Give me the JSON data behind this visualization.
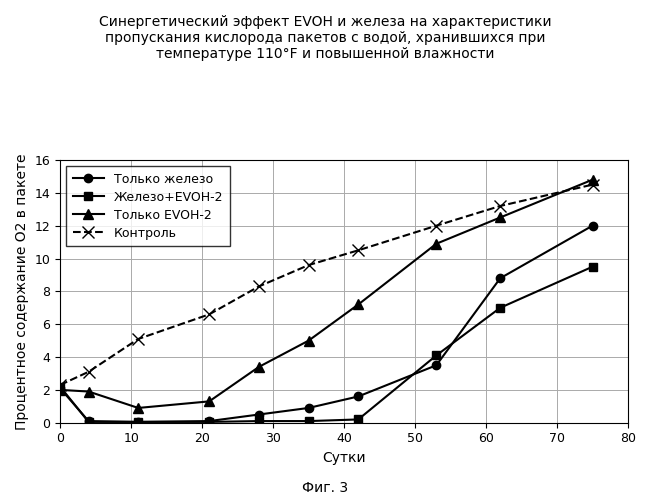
{
  "title_line1": "Синергетический эффект EVOH и железа на характеристики",
  "title_line2": "пропускания кислорода пакетов с водой, хранившихся при",
  "title_line3": "температуре 110°F и повышенной влажности",
  "xlabel": "Сутки",
  "ylabel": "Процентное содержание O2 в пакете",
  "fig_label": "Фиг. 3",
  "xlim": [
    0,
    80
  ],
  "ylim": [
    0,
    16
  ],
  "xticks": [
    0,
    10,
    20,
    30,
    40,
    50,
    60,
    70,
    80
  ],
  "yticks": [
    0,
    2,
    4,
    6,
    8,
    10,
    12,
    14,
    16
  ],
  "series": [
    {
      "label": "Только железо",
      "x": [
        0,
        4,
        11,
        21,
        28,
        35,
        42,
        53,
        62,
        75
      ],
      "y": [
        2.1,
        0.1,
        0.05,
        0.1,
        0.5,
        0.9,
        1.6,
        3.5,
        8.8,
        12.0
      ],
      "marker": "o",
      "linestyle": "-",
      "color": "#000000",
      "linewidth": 1.5,
      "markersize": 6
    },
    {
      "label": "Железо+EVOH-2",
      "x": [
        0,
        4,
        11,
        21,
        28,
        35,
        42,
        53,
        62,
        75
      ],
      "y": [
        2.2,
        0.05,
        0.05,
        0.05,
        0.1,
        0.1,
        0.2,
        4.1,
        7.0,
        9.5
      ],
      "marker": "s",
      "linestyle": "-",
      "color": "#000000",
      "linewidth": 1.5,
      "markersize": 6
    },
    {
      "label": "Только EVOH-2",
      "x": [
        0,
        4,
        11,
        21,
        28,
        35,
        42,
        53,
        62,
        75
      ],
      "y": [
        2.0,
        1.9,
        0.9,
        1.3,
        3.4,
        5.0,
        7.2,
        10.9,
        12.5,
        14.8
      ],
      "marker": "^",
      "linestyle": "-",
      "color": "#000000",
      "linewidth": 1.5,
      "markersize": 7
    },
    {
      "label": "Контроль",
      "x": [
        0,
        4,
        11,
        21,
        28,
        35,
        42,
        53,
        62,
        75
      ],
      "y": [
        2.3,
        3.1,
        5.1,
        6.6,
        8.3,
        9.6,
        10.5,
        12.0,
        13.2,
        14.5
      ],
      "marker": "x",
      "linestyle": "--",
      "color": "#000000",
      "linewidth": 1.5,
      "markersize": 8
    }
  ],
  "background_color": "#ffffff",
  "grid_color": "#aaaaaa",
  "title_fontsize": 10,
  "axis_label_fontsize": 10,
  "legend_fontsize": 9,
  "tick_fontsize": 9
}
